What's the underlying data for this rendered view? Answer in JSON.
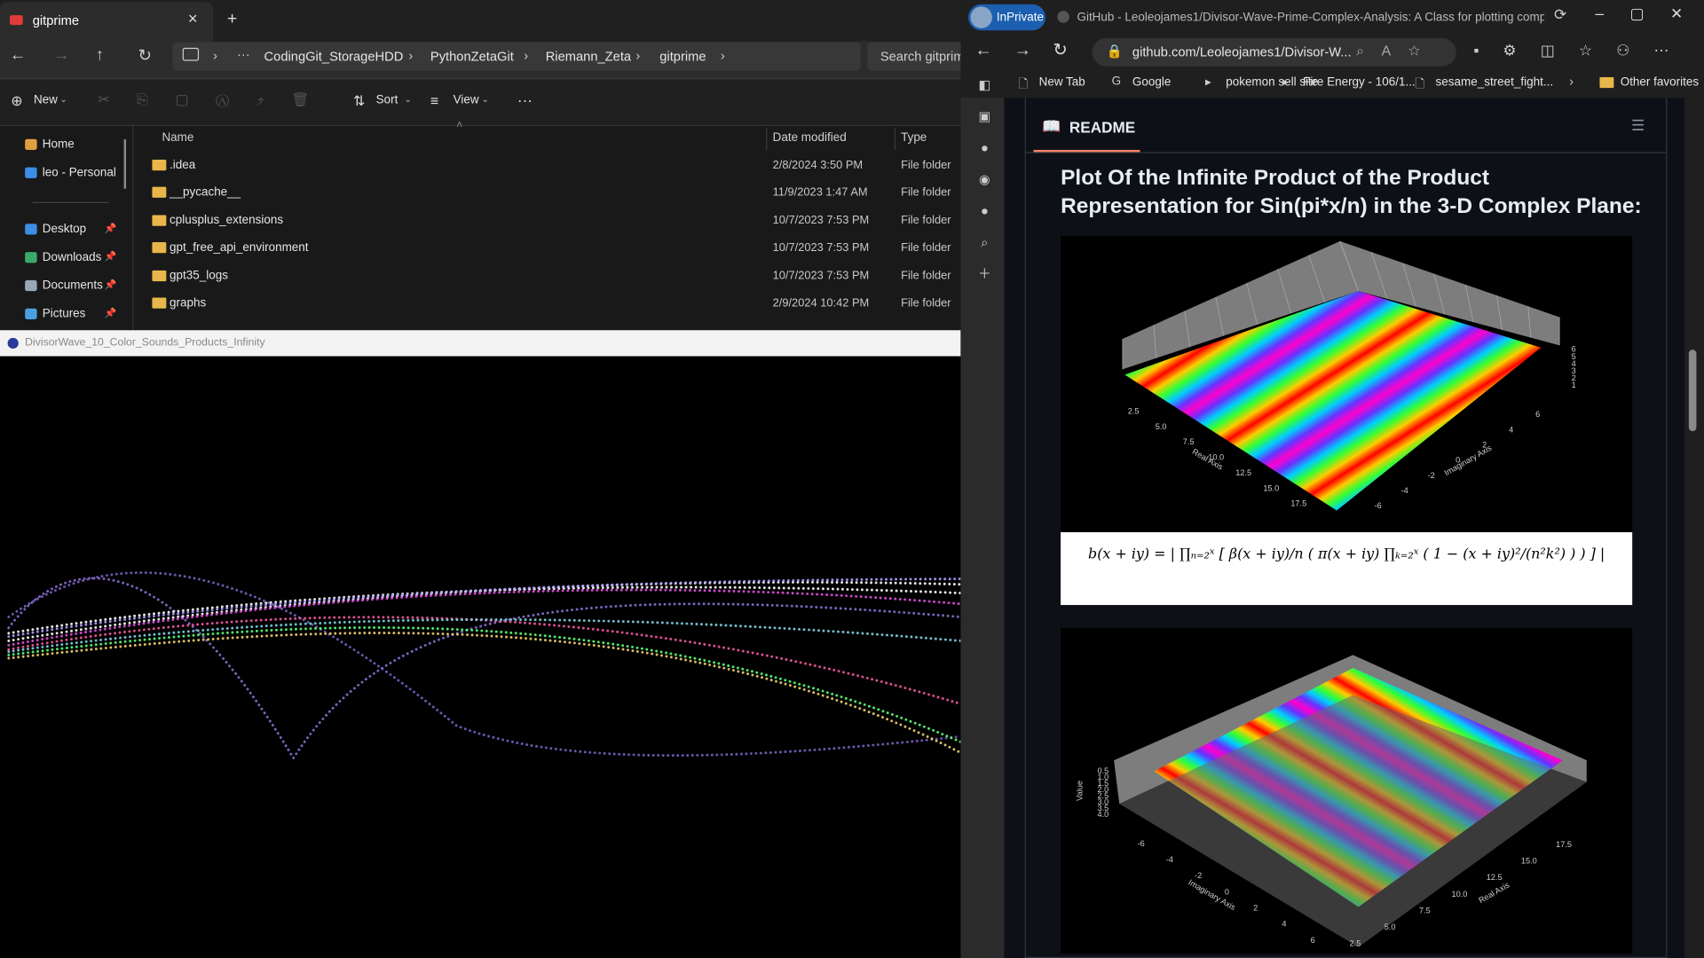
{
  "explorer": {
    "tab_title": "gitprime",
    "breadcrumbs": [
      "CodingGit_StorageHDD",
      "PythonZetaGit",
      "Riemann_Zeta",
      "gitprime"
    ],
    "search_placeholder": "Search gitprim",
    "toolbar": [
      "New",
      "Sort",
      "View"
    ],
    "sidebar": [
      "Home",
      "leo - Personal",
      "Desktop",
      "Downloads",
      "Documents",
      "Pictures"
    ],
    "columns": [
      "Name",
      "Date modified",
      "Type"
    ],
    "rows": [
      [
        ".idea",
        "2/8/2024 3:50 PM",
        "File folder"
      ],
      [
        "__pycache__",
        "11/9/2023 1:47 AM",
        "File folder"
      ],
      [
        "cplusplus_extensions",
        "10/7/2023 7:53 PM",
        "File folder"
      ],
      [
        "gpt_free_api_environment",
        "10/7/2023 7:53 PM",
        "File folder"
      ],
      [
        "gpt35_logs",
        "10/7/2023 7:53 PM",
        "File folder"
      ],
      [
        "graphs",
        "2/9/2024 10:42 PM",
        "File folder"
      ]
    ]
  },
  "plot_window": {
    "title": "DivisorWave_10_Color_Sounds_Products_Infinity"
  },
  "browser": {
    "inprivate": "InPrivate",
    "tab_title": "GitHub - Leoleojames1/Divisor-Wave-Prime-Complex-Analysis: A Class for plotting complex fun...",
    "url": "github.com/Leoleojames1/Divisor-W...",
    "favorites": [
      "New Tab",
      "Google",
      "pokemon sell site",
      "Fire Energy - 106/1...",
      "sesame_street_fight..."
    ],
    "other_favorites": "Other favorites",
    "readme": {
      "label": "README",
      "heading_lines": [
        "Plot Of the Infinite Product of the Product",
        "Representation for Sin(pi*x/n) in the 3-D Complex Plane:"
      ],
      "formula": "b(x + iy) = | ∏ₙ₌₂ˣ [ β(x + iy)/n ( π(x + iy) ∏ₖ₌₂ˣ ( 1 − (x + iy)²/(n²k²) ) ) ] |",
      "plot1": {
        "real_axis_label": "Real Axis",
        "imag_axis_label": "Imaginary Axis",
        "real_ticks": [
          "2.5",
          "5.0",
          "7.5",
          "10.0",
          "12.5",
          "15.0",
          "17.5"
        ],
        "imag_ticks": [
          "-6",
          "-4",
          "-2",
          "0",
          "2",
          "4",
          "6"
        ],
        "value_ticks": [
          "1",
          "2",
          "3",
          "4",
          "5",
          "6"
        ]
      },
      "plot2": {
        "value_label": "Value",
        "real_axis_label": "Real Axis",
        "imag_axis_label": "Imaginary Axis",
        "imag_ticks": [
          "-6",
          "-4",
          "-2",
          "0",
          "2",
          "4",
          "6"
        ],
        "real_ticks": [
          "2.5",
          "5.0",
          "7.5",
          "10.0",
          "12.5",
          "15.0",
          "17.5"
        ],
        "value_ticks": [
          "0.5",
          "1.0",
          "1.5",
          "2.0",
          "2.5",
          "3.0",
          "3.5",
          "4.0"
        ]
      }
    }
  }
}
